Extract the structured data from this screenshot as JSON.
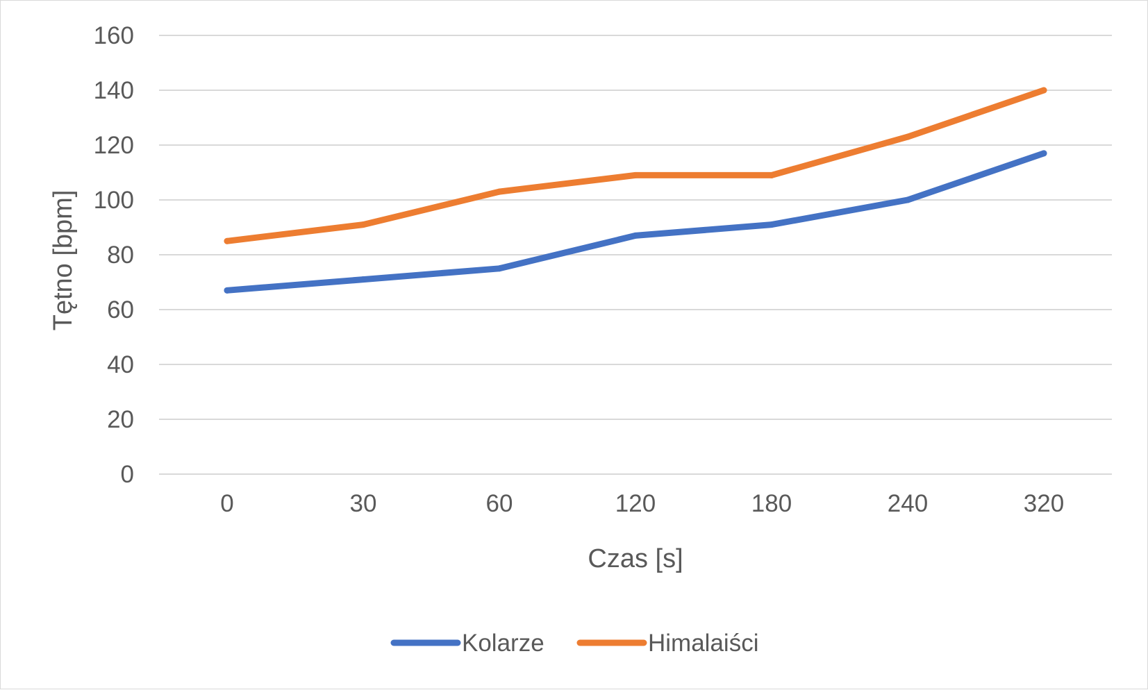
{
  "chart_data": {
    "type": "line",
    "title": "",
    "xlabel": "Czas [s]",
    "ylabel": "Tętno [bpm]",
    "categories": [
      "0",
      "30",
      "60",
      "120",
      "180",
      "240",
      "320"
    ],
    "ylim": [
      0,
      160
    ],
    "y_ticks": [
      "0",
      "20",
      "40",
      "60",
      "80",
      "100",
      "120",
      "140",
      "160"
    ],
    "grid": "horizontal",
    "legend_position": "bottom",
    "series": [
      {
        "name": "Kolarze",
        "color": "#4472c4",
        "values": [
          67,
          71,
          75,
          87,
          91,
          100,
          117
        ]
      },
      {
        "name": "Himalaiści",
        "color": "#ed7d31",
        "values": [
          85,
          91,
          103,
          109,
          109,
          123,
          140
        ]
      }
    ]
  }
}
